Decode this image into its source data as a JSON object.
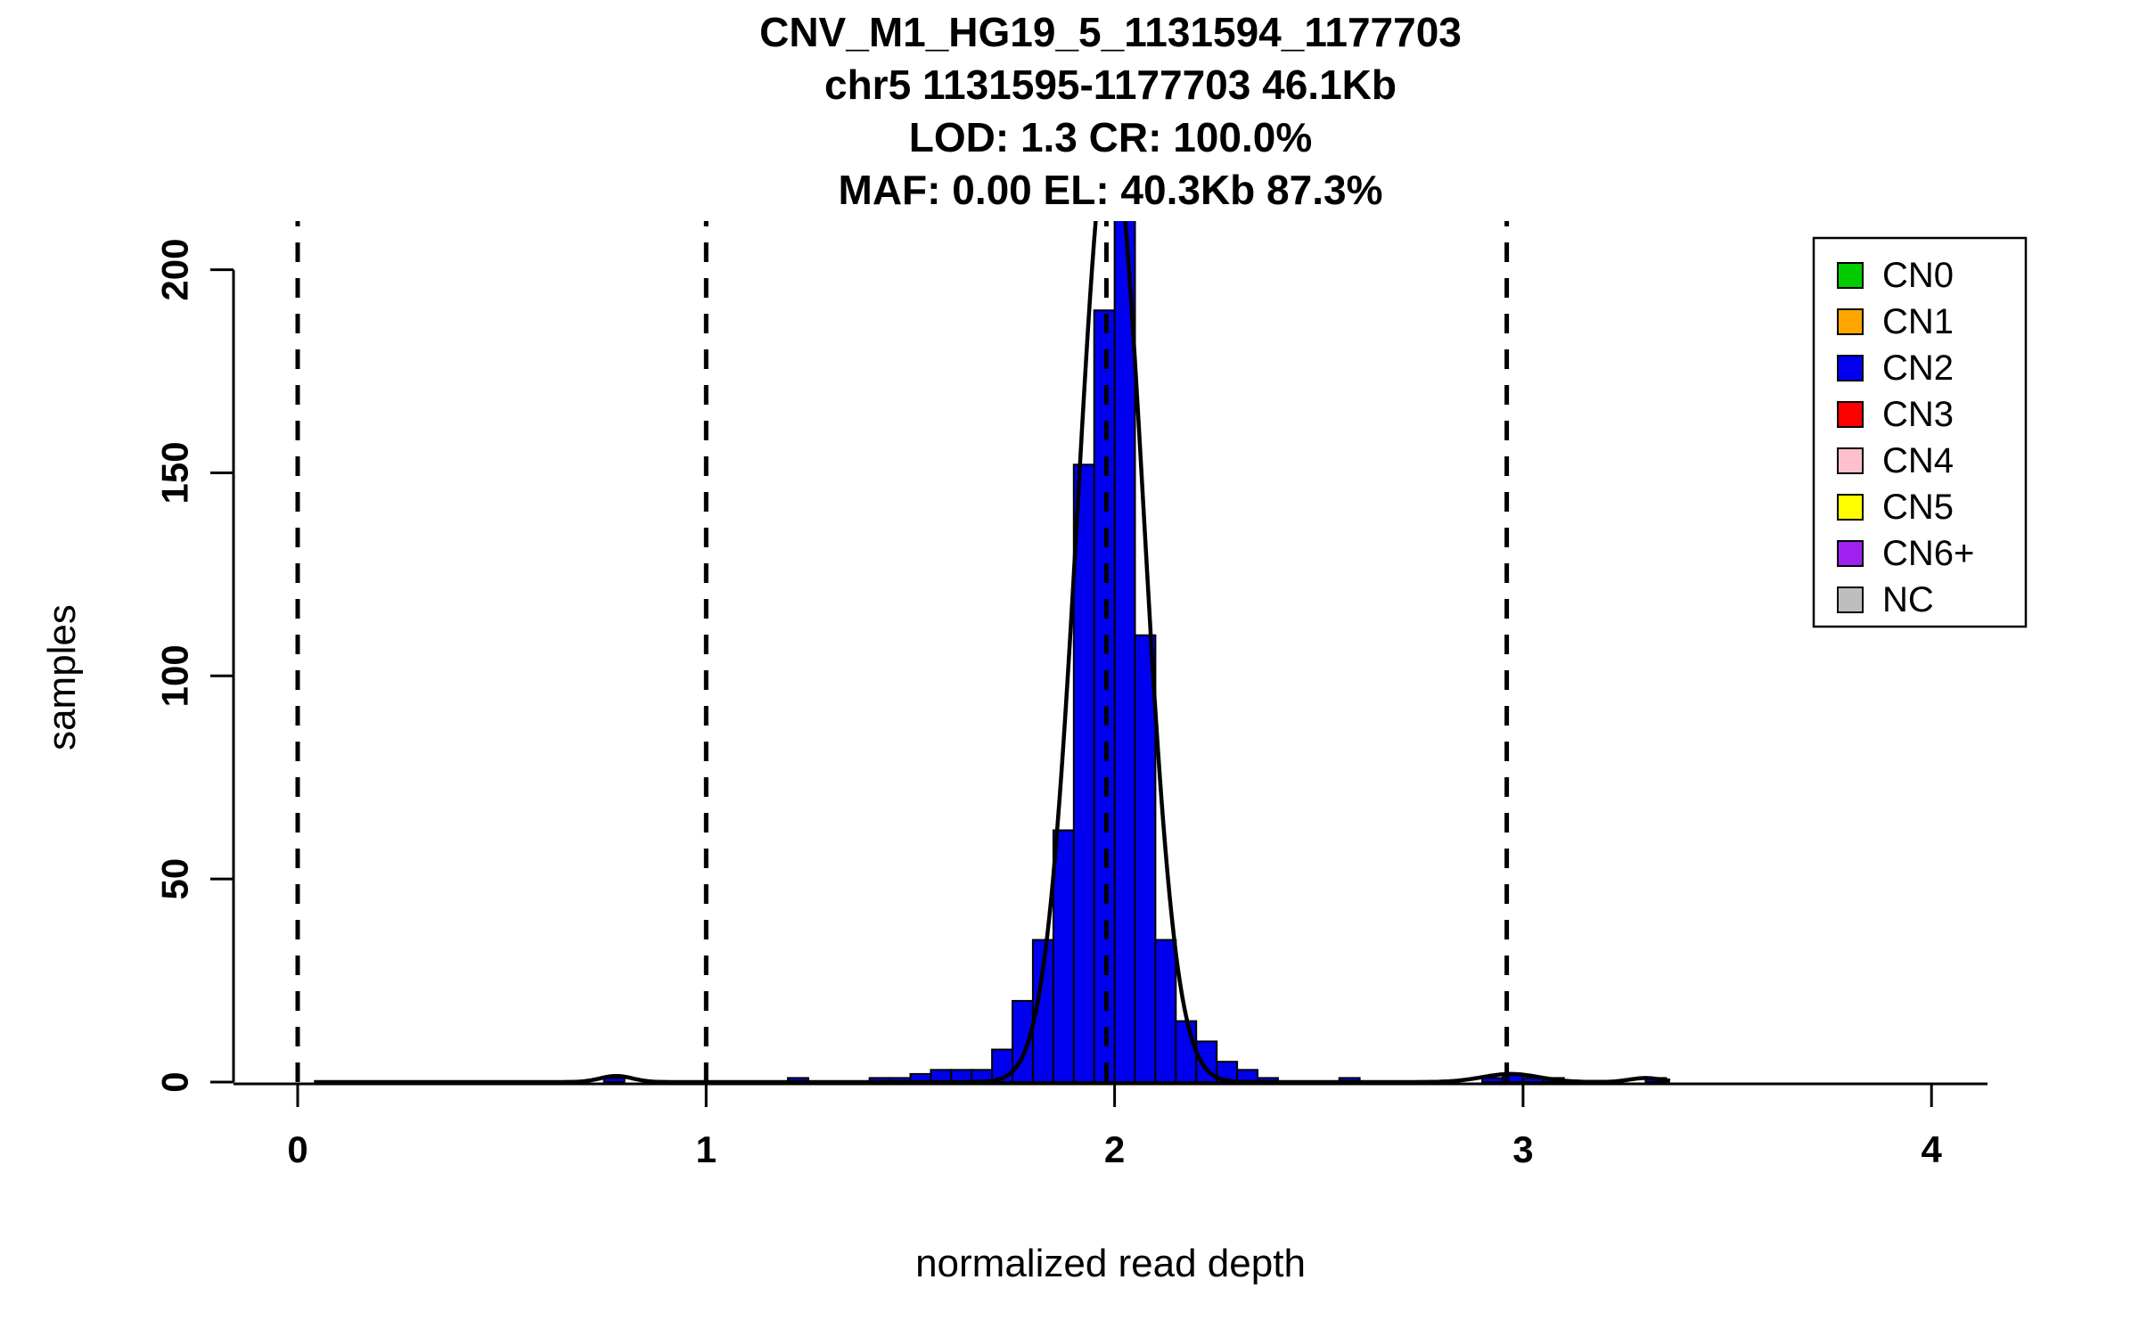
{
  "chart_data": {
    "type": "bar",
    "subtype": "histogram",
    "title_lines": [
      "CNV_M1_HG19_5_1131594_1177703",
      "chr5 1131595-1177703 46.1Kb",
      "LOD: 1.3 CR: 100.0%",
      "MAF: 0.00 EL: 40.3Kb 87.3%"
    ],
    "xlabel": "normalized read depth",
    "ylabel": "samples",
    "xticks": [
      0,
      1,
      2,
      3,
      4
    ],
    "yticks": [
      0,
      50,
      100,
      150,
      200
    ],
    "xlim": [
      -0.13,
      4.13
    ],
    "ylim": [
      0,
      212
    ],
    "grid": false,
    "background": "#FFFFFF",
    "bar_color": "#0000EE",
    "bar_border": "#000000",
    "bin_width": 0.05,
    "bins": [
      [
        0.75,
        1
      ],
      [
        1.2,
        1
      ],
      [
        1.4,
        1
      ],
      [
        1.45,
        1
      ],
      [
        1.5,
        2
      ],
      [
        1.55,
        3
      ],
      [
        1.6,
        3
      ],
      [
        1.65,
        3
      ],
      [
        1.7,
        8
      ],
      [
        1.75,
        20
      ],
      [
        1.8,
        35
      ],
      [
        1.85,
        62
      ],
      [
        1.9,
        152
      ],
      [
        1.95,
        190
      ],
      [
        2.0,
        230
      ],
      [
        2.05,
        110
      ],
      [
        2.1,
        35
      ],
      [
        2.15,
        15
      ],
      [
        2.2,
        10
      ],
      [
        2.25,
        5
      ],
      [
        2.3,
        3
      ],
      [
        2.35,
        1
      ],
      [
        2.55,
        1
      ],
      [
        2.9,
        1
      ],
      [
        2.95,
        2
      ],
      [
        3.0,
        1
      ],
      [
        3.05,
        1
      ],
      [
        3.3,
        1
      ]
    ],
    "dashed_lines_x": [
      0.0,
      1.0,
      1.98,
      2.96
    ],
    "fit_curve": {
      "mean": 1.99,
      "sd": 0.08,
      "peak": 235,
      "minor_bumps": [
        {
          "mean": 0.78,
          "sd": 0.04,
          "peak": 1.5
        },
        {
          "mean": 2.97,
          "sd": 0.07,
          "peak": 2.0
        },
        {
          "mean": 3.3,
          "sd": 0.04,
          "peak": 1.0
        }
      ]
    },
    "legend_position": "top-right",
    "legend": [
      {
        "label": "CN0",
        "color": "#00CC00"
      },
      {
        "label": "CN1",
        "color": "#FFA500"
      },
      {
        "label": "CN2",
        "color": "#0000EE"
      },
      {
        "label": "CN3",
        "color": "#FF0000"
      },
      {
        "label": "CN4",
        "color": "#FFC0CB"
      },
      {
        "label": "CN5",
        "color": "#FFFF00"
      },
      {
        "label": "CN6+",
        "color": "#A020F0"
      },
      {
        "label": "NC",
        "color": "#BEBEBE"
      }
    ]
  }
}
